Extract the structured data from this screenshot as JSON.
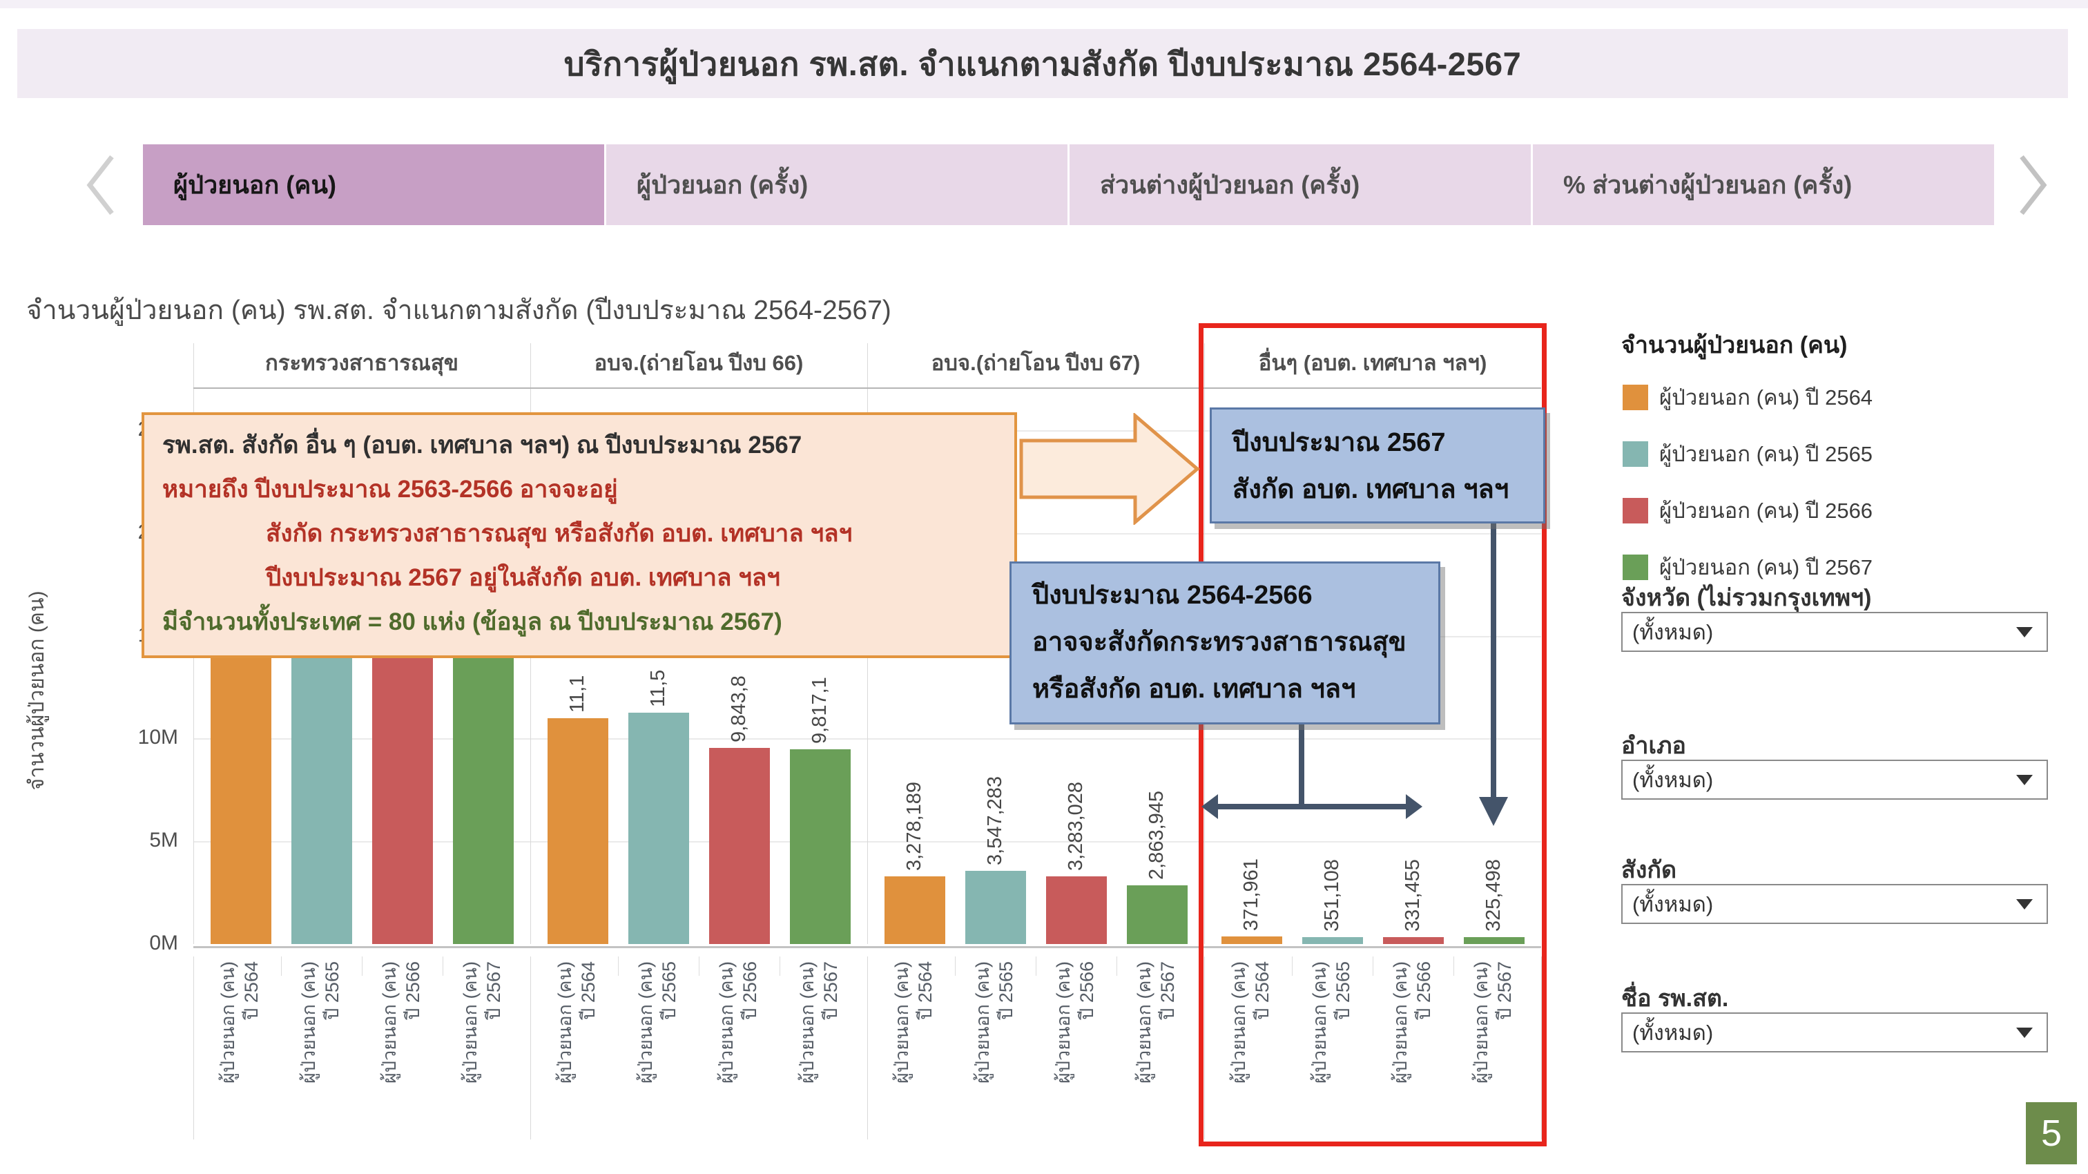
{
  "title_bar": {
    "text": "บริการผู้ป่วยนอก รพ.สต. จำแนกตามสังกัด ปีงบประมาณ 2564-2567"
  },
  "tabs": {
    "active_bg": "#c79fc5",
    "inactive_bg": "#e8d8e8",
    "items": [
      {
        "label": "ผู้ป่วยนอก (คน)",
        "active": true
      },
      {
        "label": "ผู้ป่วยนอก (ครั้ง)",
        "active": false
      },
      {
        "label": "ส่วนต่างผู้ป่วยนอก (ครั้ง)",
        "active": false
      },
      {
        "label": "% ส่วนต่างผู้ป่วยนอก (ครั้ง)",
        "active": false
      }
    ]
  },
  "chart": {
    "title": "จำนวนผู้ป่วยนอก (คน) รพ.สต. จำแนกตามสังกัด (ปีงบประมาณ 2564-2567)",
    "y_axis_title": "จำนวนผู้ป่วยนอก (คน)",
    "y_ticks": [
      {
        "label": "0M",
        "m": 0
      },
      {
        "label": "5M",
        "m": 5
      },
      {
        "label": "10M",
        "m": 10
      },
      {
        "label": "15M",
        "m": 15
      },
      {
        "label": "20M",
        "m": 20
      },
      {
        "label": "25M",
        "m": 25
      }
    ],
    "x_label_line1": "ผู้ป่วยนอก (คน)",
    "groups": [
      {
        "header": "กระทรวงสาธารณสุข",
        "bars": [
          {
            "year_label": "ปี 2564",
            "value_label": "",
            "value_est_m": 24.0
          },
          {
            "year_label": "ปี 2565",
            "value_label": "",
            "value_est_m": 23.35
          },
          {
            "year_label": "ปี 2566",
            "value_label": "",
            "value_est_m": 22.3
          },
          {
            "year_label": "ปี 2567",
            "value_label": "",
            "value_est_m": 21.0
          }
        ]
      },
      {
        "header": "อบจ.(ถ่ายโอน ปีงบ 66)",
        "bars": [
          {
            "year_label": "ปี 2564",
            "value_label": "11,1",
            "value_est_m": 11.0
          },
          {
            "year_label": "ปี 2565",
            "value_label": "11,5",
            "value_est_m": 11.26
          },
          {
            "year_label": "ปี 2566",
            "value_label": "9,843,8",
            "value_est_m": 9.55
          },
          {
            "year_label": "ปี 2567",
            "value_label": "9,817,1",
            "value_est_m": 9.48
          }
        ]
      },
      {
        "header": "อบจ.(ถ่ายโอน ปีงบ 67)",
        "bars": [
          {
            "year_label": "ปี 2564",
            "value_label": "3,278,189",
            "value_est_m": 3.278
          },
          {
            "year_label": "ปี 2565",
            "value_label": "3,547,283",
            "value_est_m": 3.547
          },
          {
            "year_label": "ปี 2566",
            "value_label": "3,283,028",
            "value_est_m": 3.283
          },
          {
            "year_label": "ปี 2567",
            "value_label": "2,863,945",
            "value_est_m": 2.864
          }
        ]
      },
      {
        "header": "อื่นๆ (อบต. เทศบาล ฯลฯ)",
        "bars": [
          {
            "year_label": "ปี 2564",
            "value_label": "371,961",
            "value_est_m": 0.372
          },
          {
            "year_label": "ปี 2565",
            "value_label": "351,108",
            "value_est_m": 0.351
          },
          {
            "year_label": "ปี 2566",
            "value_label": "331,455",
            "value_est_m": 0.331
          },
          {
            "year_label": "ปี 2567",
            "value_label": "325,498",
            "value_est_m": 0.325
          }
        ]
      }
    ]
  },
  "chart_data": {
    "type": "bar",
    "title": "จำนวนผู้ป่วยนอก (คน) รพ.สต. จำแนกตามสังกัด (ปีงบประมาณ 2564-2567)",
    "categories": [
      "กระทรวงสาธารณสุข",
      "อบจ.(ถ่ายโอน ปีงบ 66)",
      "อบจ.(ถ่ายโอน ปีงบ 67)",
      "อื่นๆ (อบต. เทศบาล ฯลฯ)"
    ],
    "series": [
      {
        "name": "ผู้ป่วยนอก (คน) ปี 2564",
        "color": "#e0913d",
        "values": [
          null,
          11100000,
          3278189,
          371961
        ]
      },
      {
        "name": "ผู้ป่วยนอก (คน) ปี 2565",
        "color": "#85b6b1",
        "values": [
          null,
          11500000,
          3547283,
          351108
        ]
      },
      {
        "name": "ผู้ป่วยนอก (คน) ปี 2566",
        "color": "#c85b5b",
        "values": [
          null,
          9843800,
          3283028,
          331455
        ]
      },
      {
        "name": "ผู้ป่วยนอก (คน) ปี 2567",
        "color": "#6a9f58",
        "values": [
          null,
          9817100,
          2863945,
          325498
        ]
      }
    ],
    "note": "values for first category are hidden behind an annotation box; second-category labels partially hidden (11,1… / 11,5… / 9,843,8… / 9,817,1…)",
    "ylabel": "จำนวนผู้ป่วยนอก (คน)",
    "ylim": [
      0,
      27000000
    ],
    "ytick_labels": [
      "0M",
      "5M",
      "10M",
      "15M",
      "20M",
      "25M"
    ],
    "grid": true,
    "legend_position": "right"
  },
  "annotations": {
    "note_box": {
      "lines": [
        {
          "text": "รพ.สต. สังกัด อื่น ๆ (อบต. เทศบาล ฯลฯ) ณ ปีงบประมาณ 2567",
          "style": "dark",
          "indent": 0
        },
        {
          "text": "หมายถึง ปีงบประมาณ 2563-2566 อาจจะอยู่",
          "style": "red",
          "indent": 0
        },
        {
          "text": "สังกัด กระทรวงสาธารณสุข หรือสังกัด อบต. เทศบาล ฯลฯ",
          "style": "red",
          "indent": 1
        },
        {
          "text": "ปีงบประมาณ 2567 อยู่ในสังกัด อบต. เทศบาล ฯลฯ",
          "style": "red",
          "indent": 1
        },
        {
          "text": "มีจำนวนทั้งประเทศ = 80 แห่ง (ข้อมูล ณ ปีงบประมาณ 2567)",
          "style": "green",
          "indent": 0
        }
      ]
    },
    "blue_box_top": {
      "lines": [
        "ปีงบประมาณ 2567",
        "สังกัด อบต. เทศบาล ฯลฯ"
      ]
    },
    "blue_box_bottom": {
      "lines": [
        "ปีงบประมาณ 2564-2566",
        "อาจจะสังกัดกระทรวงสาธารณสุข",
        "หรือสังกัด อบต. เทศบาล ฯลฯ"
      ]
    }
  },
  "legend": {
    "title": "จำนวนผู้ป่วยนอก (คน)",
    "items": [
      {
        "label": "ผู้ป่วยนอก (คน) ปี 2564",
        "color": "#e0913d"
      },
      {
        "label": "ผู้ป่วยนอก (คน) ปี 2565",
        "color": "#85b6b1"
      },
      {
        "label": "ผู้ป่วยนอก (คน) ปี 2566",
        "color": "#c85b5b"
      },
      {
        "label": "ผู้ป่วยนอก (คน) ปี 2567",
        "color": "#6a9f58"
      }
    ]
  },
  "filters": [
    {
      "label": "จังหวัด (ไม่รวมกรุงเทพฯ)",
      "value": "(ทั้งหมด)"
    },
    {
      "label": "อำเภอ",
      "value": "(ทั้งหมด)"
    },
    {
      "label": "สังกัด",
      "value": "(ทั้งหมด)"
    },
    {
      "label": "ชื่อ รพ.สต.",
      "value": "(ทั้งหมด)"
    }
  ],
  "page_number": "5"
}
